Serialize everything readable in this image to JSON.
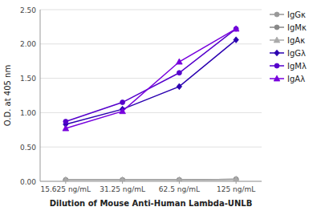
{
  "chart_data": {
    "type": "line",
    "categories": [
      "15.625 ng/mL",
      "31.25 ng/mL",
      "62.5 ng/mL",
      "125 ng/mL"
    ],
    "series": [
      {
        "name": "IgGκ",
        "color": "#999999",
        "marker": "circle",
        "line_style": "solid",
        "values": [
          0.02,
          0.02,
          0.02,
          0.03
        ]
      },
      {
        "name": "IgMκ",
        "color": "#888888",
        "marker": "circle",
        "line_style": "solid",
        "values": [
          0.02,
          0.02,
          0.02,
          0.03
        ]
      },
      {
        "name": "IgAκ",
        "color": "#aaaaaa",
        "marker": "triangle",
        "line_style": "solid",
        "values": [
          0.02,
          0.02,
          0.02,
          0.03
        ]
      },
      {
        "name": "IgGλ",
        "color": "#2a00b0",
        "marker": "diamond",
        "line_style": "solid",
        "values": [
          0.83,
          1.05,
          1.38,
          2.06
        ]
      },
      {
        "name": "IgMλ",
        "color": "#5500cc",
        "marker": "circle",
        "line_style": "solid",
        "values": [
          0.87,
          1.15,
          1.58,
          2.22
        ]
      },
      {
        "name": "IgAλ",
        "color": "#7700dd",
        "marker": "triangle",
        "line_style": "solid",
        "values": [
          0.77,
          1.02,
          1.74,
          2.22
        ]
      }
    ],
    "x_label": "Dilution of Mouse Anti-Human Lambda-UNLB",
    "y_label": "O.D. at 405 nm",
    "ylim": [
      0.0,
      2.5
    ],
    "yticks": [
      {
        "value": 0.0,
        "label": "0.00"
      },
      {
        "value": 0.5,
        "label": "0.50"
      },
      {
        "value": 1.0,
        "label": "1.00"
      },
      {
        "value": 1.5,
        "label": "1.50"
      },
      {
        "value": 2.0,
        "label": "2.00"
      },
      {
        "value": 2.5,
        "label": "2.50"
      }
    ],
    "grid": true,
    "legend": "right"
  }
}
